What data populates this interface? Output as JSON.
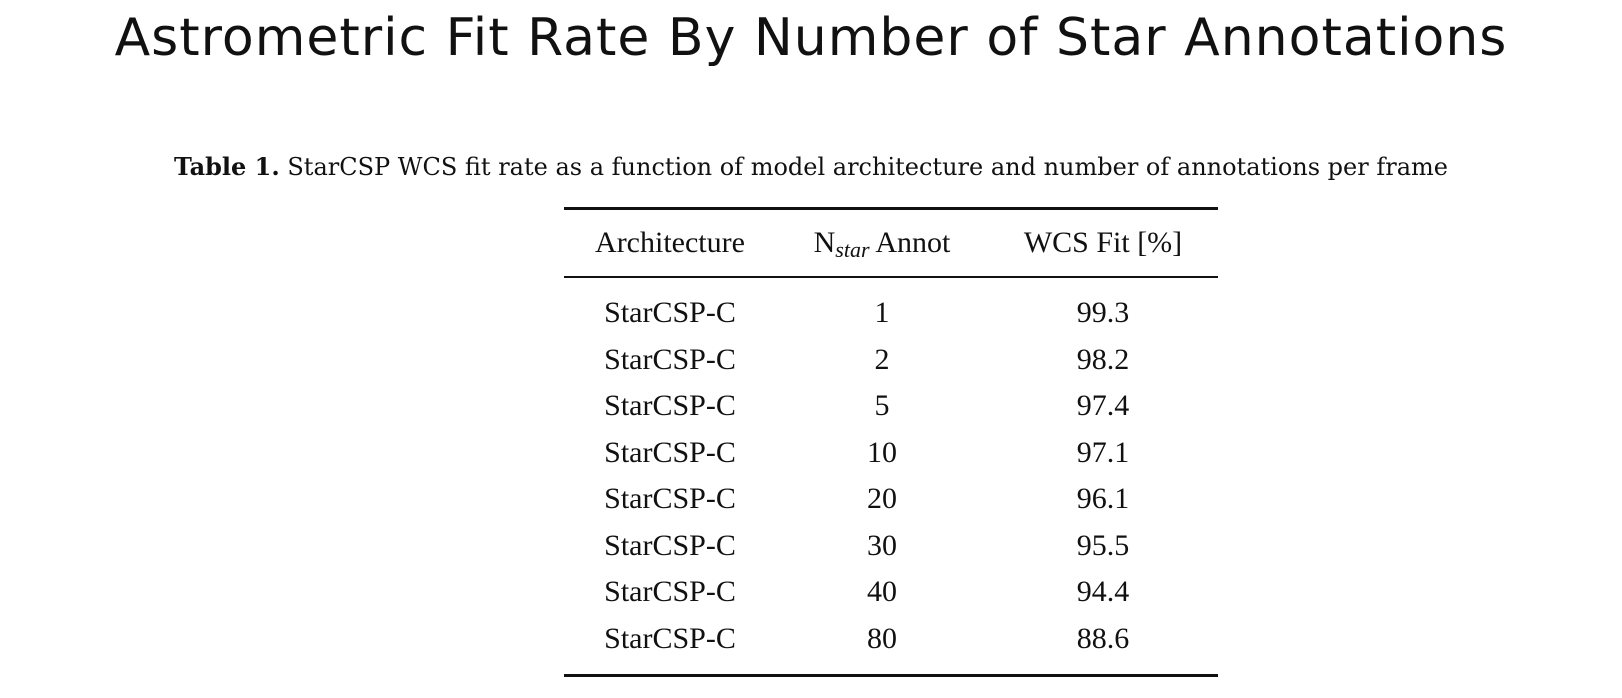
{
  "page_title": "Astrometric Fit Rate By Number of Star Annotations",
  "caption": {
    "label": "Table 1.",
    "text": "StarCSP WCS fit rate as a function of model architecture and number of annotations per frame"
  },
  "table": {
    "headers": {
      "architecture": "Architecture",
      "n_main": "N",
      "n_sub": "star",
      "n_suffix": " Annot",
      "wcs_fit": "WCS Fit [%]"
    },
    "rows": [
      {
        "architecture": "StarCSP-C",
        "n_annot": "1",
        "wcs_fit": "99.3"
      },
      {
        "architecture": "StarCSP-C",
        "n_annot": "2",
        "wcs_fit": "98.2"
      },
      {
        "architecture": "StarCSP-C",
        "n_annot": "5",
        "wcs_fit": "97.4"
      },
      {
        "architecture": "StarCSP-C",
        "n_annot": "10",
        "wcs_fit": "97.1"
      },
      {
        "architecture": "StarCSP-C",
        "n_annot": "20",
        "wcs_fit": "96.1"
      },
      {
        "architecture": "StarCSP-C",
        "n_annot": "30",
        "wcs_fit": "95.5"
      },
      {
        "architecture": "StarCSP-C",
        "n_annot": "40",
        "wcs_fit": "94.4"
      },
      {
        "architecture": "StarCSP-C",
        "n_annot": "80",
        "wcs_fit": "88.6"
      }
    ]
  }
}
